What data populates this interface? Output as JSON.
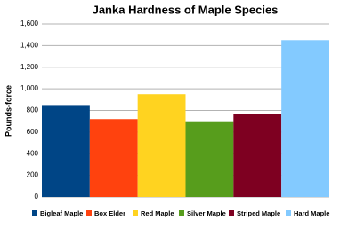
{
  "chart_data": {
    "type": "bar",
    "title": "Janka Hardness of Maple Species",
    "y_label": "Pounds-force",
    "series": [
      {
        "name": "Bigleaf Maple",
        "color": "#004586",
        "values": [
          850
        ]
      },
      {
        "name": "Box Elder",
        "color": "#ff420e",
        "values": [
          720
        ]
      },
      {
        "name": "Red Maple",
        "color": "#ffd320",
        "values": [
          950
        ]
      },
      {
        "name": "Silver Maple",
        "color": "#579d1c",
        "values": [
          700
        ]
      },
      {
        "name": "Striped Maple",
        "color": "#7e0021",
        "values": [
          770
        ]
      },
      {
        "name": "Hard Maple",
        "color": "#83caff",
        "values": [
          1450
        ]
      }
    ],
    "ylim": [
      0,
      1600
    ],
    "yticks": [
      0,
      200,
      400,
      600,
      800,
      {
        "value": 1000,
        "label": "1,000"
      },
      {
        "value": 1200,
        "label": "1,200"
      },
      {
        "value": 1400,
        "label": "1,400"
      },
      {
        "value": 1600,
        "label": "1,600"
      }
    ],
    "grid": true
  }
}
